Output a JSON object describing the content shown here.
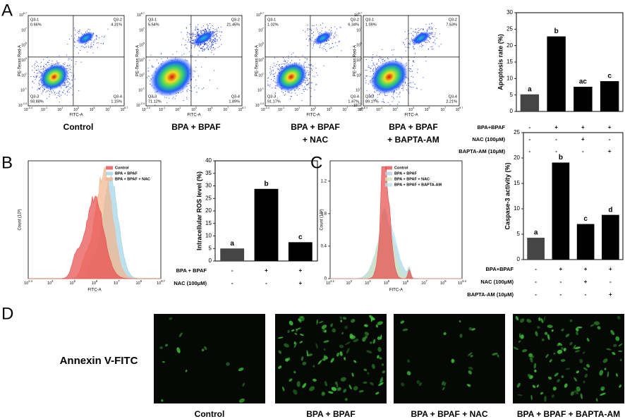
{
  "panel_labels": [
    "A",
    "B",
    "C",
    "D"
  ],
  "flow_plots": {
    "exp_base": "10",
    "x_title": "FITC-A",
    "y_title": "PE-Texas Red-A",
    "x_tick_exponents": [
      "-2.4",
      "-1",
      "1",
      "3",
      "5",
      "7",
      "8.7"
    ],
    "y_tick_exponents": [
      "-2.4",
      "-1",
      "1",
      "3",
      "5",
      "7",
      "8.7"
    ],
    "plots": [
      {
        "caption": [
          "Control"
        ],
        "quadrants": [
          [
            "Q3-1",
            "0.66%"
          ],
          [
            "Q3-2",
            "4.31%"
          ],
          [
            "Q3-3",
            "93.88%"
          ],
          [
            "Q3-4",
            "1.15%"
          ]
        ]
      },
      {
        "caption": [
          "BPA + BPAF"
        ],
        "quadrants": [
          [
            "Q3-1",
            "5.54%"
          ],
          [
            "Q3-2",
            "21.45%"
          ],
          [
            "Q3-3",
            "71.12%"
          ],
          [
            "Q3-4",
            "1.89%"
          ]
        ]
      },
      {
        "caption": [
          "BPA + BPAF",
          "+ NAC"
        ],
        "quadrants": [
          [
            "Q3-1",
            "1.02%"
          ],
          [
            "Q3-2",
            "6.34%"
          ],
          [
            "Q3-3",
            "91.17%"
          ],
          [
            "Q3-4",
            "1.47%"
          ]
        ]
      },
      {
        "caption": [
          "BPA + BPAF",
          "+ BAPTA-AM"
        ],
        "quadrants": [
          [
            "Q3-1",
            "1.09%"
          ],
          [
            "Q3-2",
            "7.53%"
          ],
          [
            "Q3-3",
            "89.17%"
          ],
          [
            "Q3-4",
            "2.21%"
          ]
        ]
      }
    ]
  },
  "histograms": [
    {
      "legend": [
        "Control",
        "BPA + BPAF",
        "BPA + BPAF + NAC"
      ],
      "colors": [
        "#e84a4a",
        "#9fd3e6",
        "#f3b48a"
      ],
      "x_title": "FITC-A",
      "y_title": "Count (10³)",
      "exp_base": "10",
      "x_tick_exponents": [
        "2.4",
        "4",
        "5",
        "6",
        "7",
        "8",
        "8.7"
      ]
    },
    {
      "legend": [
        "Control",
        "BPA + BPAF",
        "BPA + BPAF + NAC",
        "BPA + BPAF + BAPTA-AM"
      ],
      "colors": [
        "#e84a4a",
        "#b5cde8",
        "#d3e2bc",
        "#b9e4ee"
      ],
      "x_title": "FITC-A",
      "y_title": "Count (10³)",
      "exp_base": "10",
      "x_tick_exponents": [
        "2.1",
        "3",
        "4",
        "5",
        "6",
        "7",
        "8",
        "9.4"
      ],
      "ylim": [
        0,
        1.45
      ],
      "yticks": [
        0,
        0.4,
        0.8,
        1.2
      ]
    }
  ],
  "chart_data": [
    {
      "type": "bar",
      "ylabel": "Apoptosis rate (%)",
      "values": [
        5.2,
        22.8,
        7.5,
        9.2
      ],
      "colors": [
        "#454545",
        "#000000",
        "#000000",
        "#000000"
      ],
      "ylim": [
        0,
        30
      ],
      "yticks": [
        0,
        5,
        10,
        15,
        20,
        25,
        30
      ],
      "annotations": [
        "a",
        "b",
        "ac",
        "c"
      ],
      "conditions": [
        {
          "label": "BPA+BPAF",
          "marks": [
            "-",
            "+",
            "+",
            "+"
          ]
        },
        {
          "label": "NAC (100μM)",
          "marks": [
            "-",
            "-",
            "+",
            "-"
          ]
        },
        {
          "label": "BAPTA-AM (10μM)",
          "marks": [
            "-",
            "-",
            "-",
            "+"
          ]
        }
      ]
    },
    {
      "type": "bar",
      "ylabel": "Intracellular ROS level (%)",
      "values": [
        5.0,
        28.8,
        7.5
      ],
      "colors": [
        "#454545",
        "#000000",
        "#000000"
      ],
      "ylim": [
        0,
        40
      ],
      "yticks": [
        0,
        5,
        10,
        15,
        20,
        25,
        30,
        35,
        40
      ],
      "annotations": [
        "a",
        "b",
        "c"
      ],
      "conditions": [
        {
          "label": "BPA + BPAF",
          "marks": [
            "-",
            "+",
            "+"
          ]
        },
        {
          "label": "NAC (100μM)",
          "marks": [
            "-",
            "-",
            "+"
          ]
        }
      ]
    },
    {
      "type": "bar",
      "ylabel": "Caspase-3 activity (%)",
      "values": [
        4.3,
        19.1,
        7.0,
        8.8
      ],
      "colors": [
        "#454545",
        "#000000",
        "#000000",
        "#000000"
      ],
      "ylim": [
        0,
        25
      ],
      "yticks": [
        0,
        5,
        10,
        15,
        20,
        25
      ],
      "annotations": [
        "a",
        "b",
        "c",
        "d"
      ],
      "conditions": [
        {
          "label": "BPA+BPAF",
          "marks": [
            "-",
            "+",
            "+",
            "+"
          ]
        },
        {
          "label": "NAC (100μM)",
          "marks": [
            "-",
            "-",
            "+",
            "-"
          ]
        },
        {
          "label": "BAPTA-AM (10μM)",
          "marks": [
            "-",
            "-",
            "-",
            "+"
          ]
        }
      ]
    }
  ],
  "fluorescence": {
    "row_label": "Annexin V-FITC",
    "captions": [
      "Control",
      "BPA + BPAF",
      "BPA + BPAF + NAC",
      "BPA + BPAF + BAPTA-AM"
    ]
  }
}
